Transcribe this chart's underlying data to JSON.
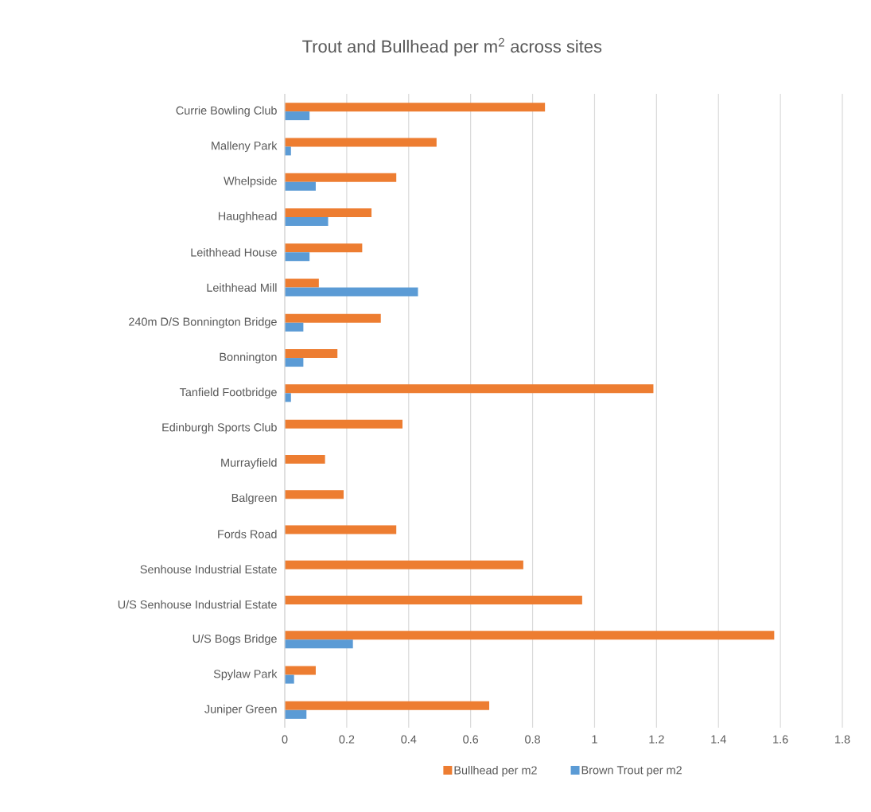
{
  "chart_data": {
    "type": "bar",
    "orientation": "horizontal",
    "title": "Trout and Bullhead per m$^{2}$ across sites",
    "categories": [
      "Currie Bowling Club",
      "Malleny Park",
      "Whelpside",
      "Haughhead",
      "Leithhead House",
      "Leithhead Mill",
      "240m D/S Bonnington Bridge",
      "Bonnington",
      "Tanfield Footbridge",
      "Edinburgh Sports Club",
      "Murrayfield",
      "Balgreen",
      "Fords Road",
      "Senhouse Industrial Estate",
      "U/S Senhouse Industrial Estate",
      "U/S Bogs Bridge",
      "Spylaw Park",
      "Juniper Green"
    ],
    "series": [
      {
        "name": "Bullhead per m2",
        "color": "#ed7d31",
        "values": [
          0.84,
          0.49,
          0.36,
          0.28,
          0.25,
          0.11,
          0.31,
          0.17,
          1.19,
          0.38,
          0.13,
          0.19,
          0.36,
          0.77,
          0.96,
          1.58,
          0.1,
          0.66
        ]
      },
      {
        "name": "Brown Trout per m2",
        "color": "#5b9bd5",
        "values": [
          0.08,
          0.02,
          0.1,
          0.14,
          0.08,
          0.43,
          0.06,
          0.06,
          0.02,
          null,
          null,
          null,
          null,
          null,
          null,
          0.22,
          0.03,
          0.07
        ]
      }
    ],
    "xlim": [
      0,
      1.8
    ],
    "xticks": [
      0,
      0.2,
      0.4,
      0.6,
      0.8,
      1,
      1.2,
      1.4,
      1.6,
      1.8
    ],
    "grid": "x",
    "legend": "bottom"
  }
}
